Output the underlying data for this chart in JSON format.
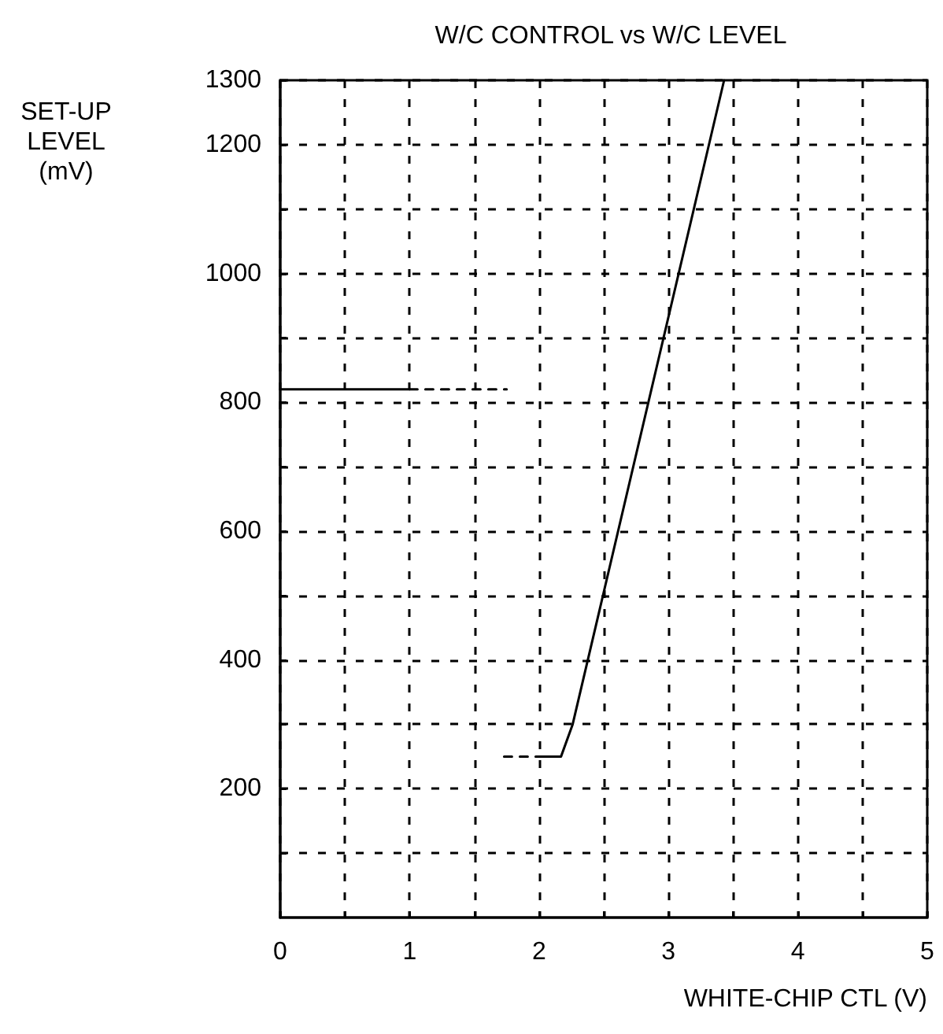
{
  "chart_data": {
    "type": "line",
    "title": "W/C CONTROL vs W/C LEVEL",
    "xlabel": "WHITE-CHIP CTL (V)",
    "ylabel": "SET-UP\nLEVEL\n(mV)",
    "xlim": [
      0,
      5
    ],
    "ylim": [
      0,
      1300
    ],
    "xticks": [
      0,
      {
        "value": 0.5,
        "label": null
      },
      1,
      {
        "value": 1.5,
        "label": null
      },
      2,
      {
        "value": 2.5,
        "label": null
      },
      3,
      {
        "value": 3.5,
        "label": null
      },
      4,
      {
        "value": 4.5,
        "label": null
      },
      5
    ],
    "yticks": [
      {
        "value": 100,
        "label": null
      },
      200,
      {
        "value": 300,
        "label": null
      },
      400,
      {
        "value": 500,
        "label": null
      },
      600,
      {
        "value": 700,
        "label": null
      },
      800,
      {
        "value": 900,
        "label": null
      },
      1000,
      {
        "value": 1100,
        "label": null
      },
      1200,
      1300
    ],
    "grid": true,
    "marker": "none",
    "series": [
      {
        "color": "#000000",
        "line_style": "solid",
        "x": [
          0,
          1
        ],
        "values": [
          820,
          820
        ]
      },
      {
        "color": "#000000",
        "line_style": "dashed",
        "x": [
          1,
          1.75
        ],
        "values": [
          820,
          820
        ]
      },
      {
        "color": "#000000",
        "line_style": "dashed",
        "x": [
          1.73,
          2.02
        ],
        "values": [
          250,
          250
        ]
      },
      {
        "color": "#000000",
        "line_style": "solid",
        "x": [
          2.02,
          2.17,
          2.26,
          3.43
        ],
        "values": [
          250,
          250,
          300,
          1300
        ]
      }
    ]
  }
}
